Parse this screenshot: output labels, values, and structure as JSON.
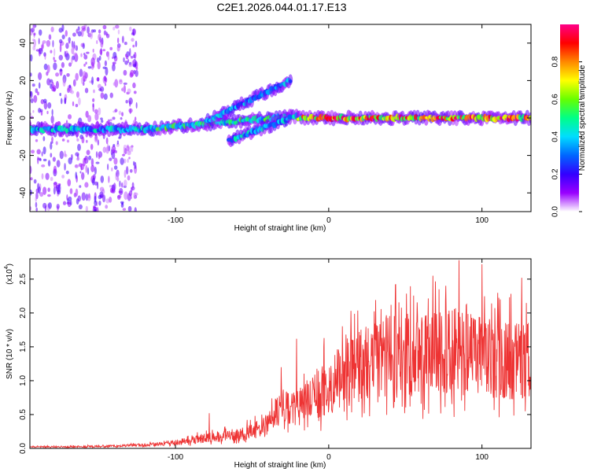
{
  "title": "C2E1.2026.044.01.17.E13",
  "chart_data": [
    {
      "type": "heatmap",
      "title": "C2E1.2026.044.01.17.E13",
      "xlabel": "Height of straight line (km)",
      "ylabel": "Frequency (Hz)",
      "xlim": [
        -195,
        132
      ],
      "ylim": [
        -50,
        50
      ],
      "xticks": [
        -100,
        0,
        100
      ],
      "yticks": [
        -40,
        -20,
        0,
        20,
        40
      ],
      "colorbar": {
        "label": "Normalized spectral amplitude",
        "range": [
          0,
          1
        ],
        "ticks": [
          "0.0",
          "0.2",
          "0.4",
          "0.6",
          "0.8"
        ],
        "colors": [
          "#ffffff",
          "#9900ff",
          "#3300ff",
          "#0066ff",
          "#00ddff",
          "#00ff88",
          "#66ff00",
          "#ffff00",
          "#ff8800",
          "#ff0000",
          "#ff0088"
        ]
      },
      "features": [
        {
          "name": "scattered noise",
          "x_range": [
            -195,
            -125
          ],
          "y_range": [
            -50,
            50
          ],
          "amplitude": 0.15
        },
        {
          "name": "main band",
          "x_range": [
            -195,
            -120
          ],
          "y_center": -6,
          "amplitude": 0.45
        },
        {
          "name": "rising main band",
          "x_range": [
            -120,
            -20
          ],
          "y_start": -6,
          "y_end": 1,
          "amplitude": 0.55
        },
        {
          "name": "upper branch",
          "x_range": [
            -80,
            -25
          ],
          "y_start": -2,
          "y_end": 20,
          "amplitude": 0.4
        },
        {
          "name": "lower branch",
          "x_range": [
            -65,
            -25
          ],
          "y_start": -12,
          "y_end": 0,
          "amplitude": 0.45
        },
        {
          "name": "flat band",
          "x_range": [
            -20,
            132
          ],
          "y_center": 0,
          "amplitude": 0.9
        }
      ]
    },
    {
      "type": "line",
      "xlabel": "Height of straight line (km)",
      "ylabel": "SNR (10 * v/v)",
      "yscale_label": "(x10",
      "yscale_exp": "4",
      "yscale_close": ")",
      "xlim": [
        -195,
        132
      ],
      "ylim": [
        0,
        2.8
      ],
      "xticks": [
        -100,
        0,
        100
      ],
      "yticks": [
        "0.0",
        "0.5",
        "1.0",
        "1.5",
        "2.0",
        "2.5"
      ],
      "color": "#ee3333",
      "envelope": {
        "x": [
          -195,
          -150,
          -120,
          -100,
          -90,
          -80,
          -70,
          -60,
          -50,
          -40,
          -35,
          -30,
          -25,
          -20,
          -10,
          0,
          10,
          20,
          30,
          40,
          50,
          60,
          70,
          80,
          90,
          100,
          110,
          120,
          132
        ],
        "y": [
          0.02,
          0.03,
          0.05,
          0.08,
          0.12,
          0.15,
          0.18,
          0.2,
          0.25,
          0.35,
          0.5,
          0.65,
          0.55,
          0.6,
          0.75,
          0.9,
          1.1,
          1.2,
          1.3,
          1.35,
          1.35,
          1.35,
          1.4,
          1.4,
          1.4,
          1.35,
          1.3,
          1.3,
          1.3
        ]
      },
      "spikes": [
        {
          "x": -78,
          "y": 0.52
        },
        {
          "x": -31,
          "y": 1.2
        },
        {
          "x": -21,
          "y": 1.62
        },
        {
          "x": -3,
          "y": 1.63
        },
        {
          "x": 20,
          "y": 1.72
        },
        {
          "x": 31,
          "y": 1.82
        },
        {
          "x": 58,
          "y": 1.95
        },
        {
          "x": 68,
          "y": 2.55
        },
        {
          "x": 72,
          "y": 2.35
        },
        {
          "x": 85,
          "y": 2.78
        },
        {
          "x": 100,
          "y": 2.72
        },
        {
          "x": 112,
          "y": 2.2
        },
        {
          "x": 126,
          "y": 2.52
        }
      ]
    }
  ]
}
